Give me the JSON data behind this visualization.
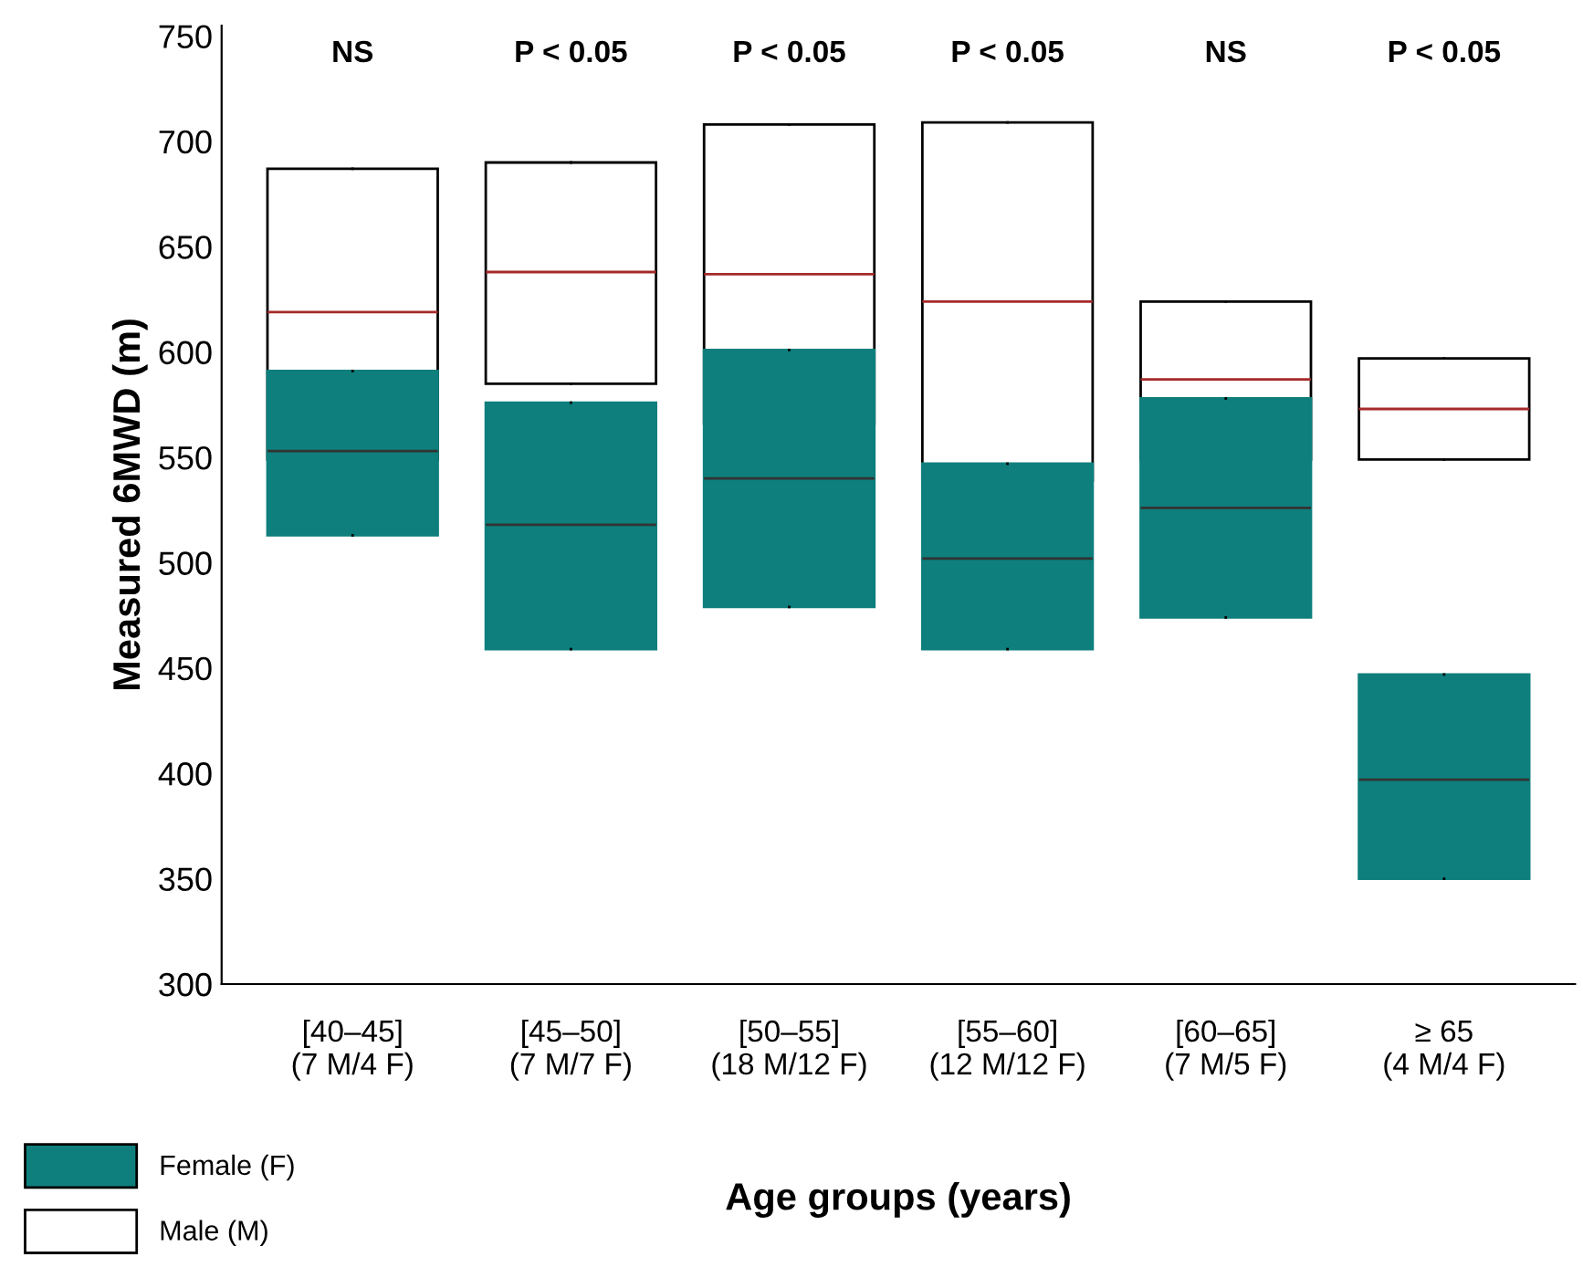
{
  "chart_data": {
    "type": "box",
    "xlabel": "Age groups (years)",
    "ylabel": "Measured 6MWD (m)",
    "categories": [
      "[40–45]\n(7 M/4 F)",
      "[45–50]\n(7 M/7 F)",
      "[50–55]\n(18 M/12 F)",
      "[55–60]\n(12 M/12 F)",
      "[60–65]\n(7 M/5 F)",
      "≥ 65\n(4 M/4 F)"
    ],
    "series": [
      {
        "name": "Male (M)",
        "color": "#ffffff",
        "boxes": [
          {
            "low": 549,
            "q1": 549,
            "median": 619,
            "q3": 687,
            "high": 687
          },
          {
            "low": 585,
            "q1": 585,
            "median": 638,
            "q3": 690,
            "high": 690
          },
          {
            "low": 566,
            "q1": 566,
            "median": 637,
            "q3": 708,
            "high": 708
          },
          {
            "low": 539,
            "q1": 539,
            "median": 624,
            "q3": 709,
            "high": 709
          },
          {
            "low": 549,
            "q1": 549,
            "median": 587,
            "q3": 624,
            "high": 624
          },
          {
            "low": 549,
            "q1": 549,
            "median": 573,
            "q3": 597,
            "high": 597
          }
        ]
      },
      {
        "name": "Female (F)",
        "color": "#0e7f7c",
        "boxes": [
          {
            "low": 513,
            "q1": 513,
            "median": 553,
            "q3": 591,
            "high": 591
          },
          {
            "low": 459,
            "q1": 459,
            "median": 518,
            "q3": 576,
            "high": 576
          },
          {
            "low": 479,
            "q1": 479,
            "median": 540,
            "q3": 601,
            "high": 601
          },
          {
            "low": 459,
            "q1": 459,
            "median": 502,
            "q3": 547,
            "high": 547
          },
          {
            "low": 474,
            "q1": 474,
            "median": 526,
            "q3": 578,
            "high": 578
          },
          {
            "low": 350,
            "q1": 350,
            "median": 397,
            "q3": 447,
            "high": 447
          }
        ]
      }
    ],
    "annotations": [
      "NS",
      "P < 0.05",
      "P < 0.05",
      "P < 0.05",
      "NS",
      "P < 0.05"
    ],
    "ylim": [
      300,
      755
    ],
    "yticks": [
      300,
      350,
      400,
      450,
      500,
      550,
      600,
      650,
      700,
      750
    ],
    "grid": false,
    "legend": "bottom left"
  }
}
